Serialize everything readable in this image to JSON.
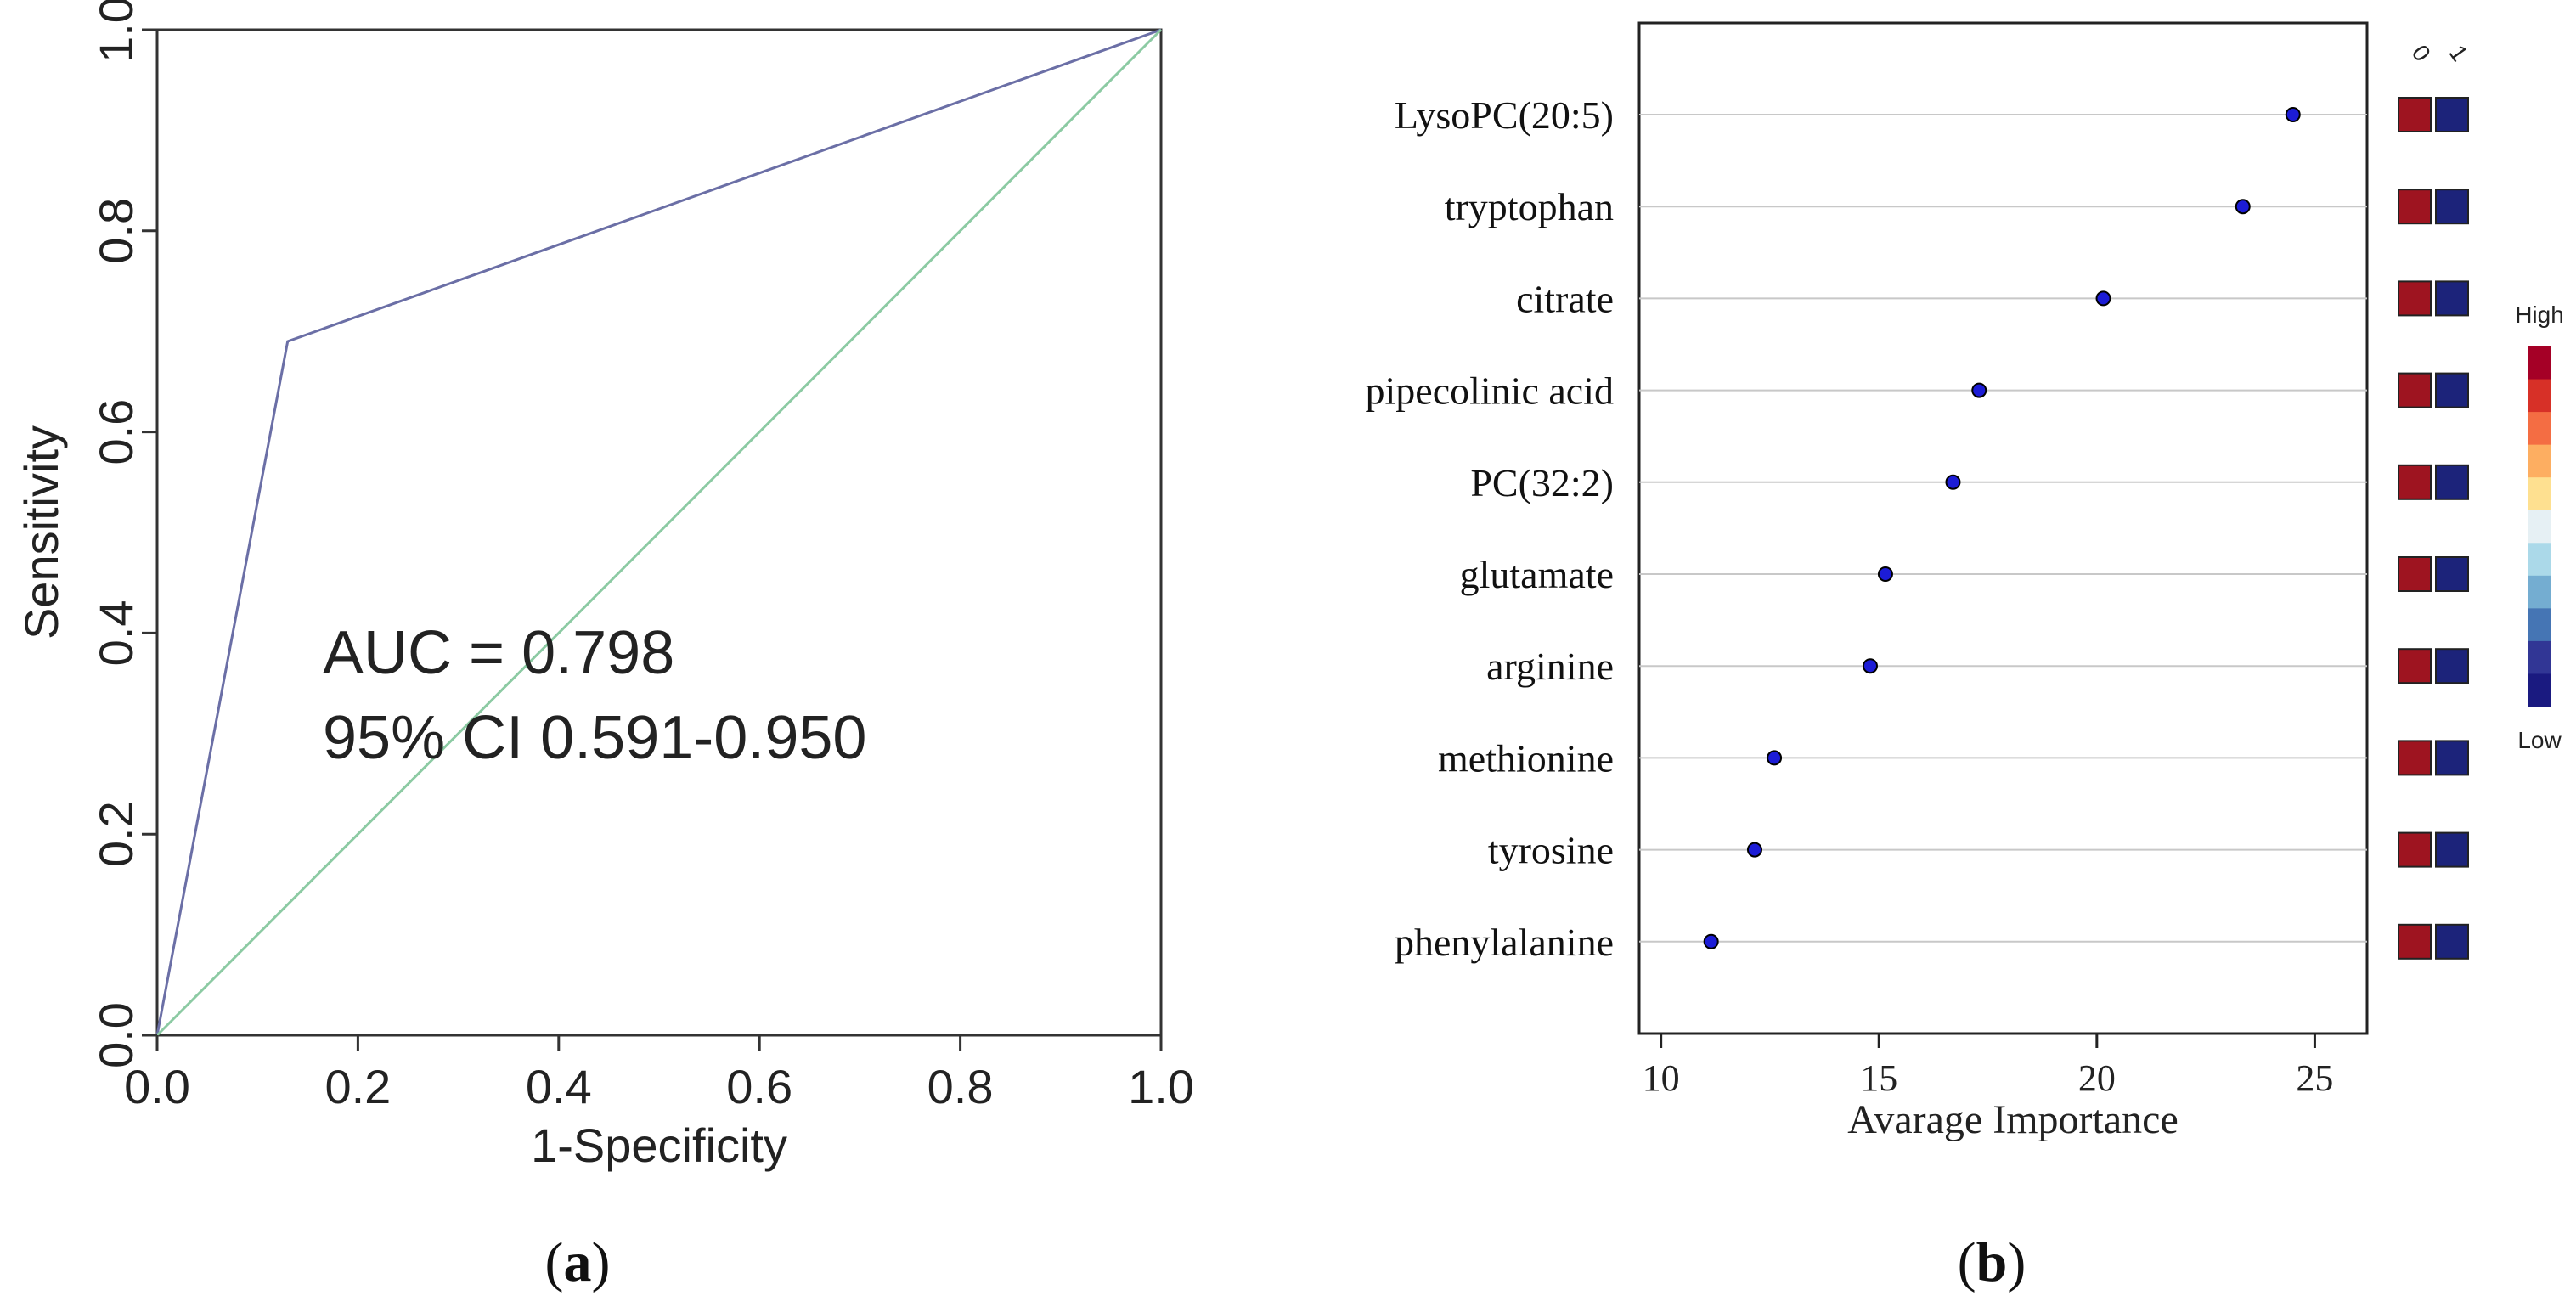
{
  "colors": {
    "roc_curve": "#6b6fa6",
    "diagonal": "#8ccaa3",
    "axis": "#333333",
    "grid": "#c8c8c8",
    "point_fill": "#1c1cd6",
    "cell_class0": "#9e1420",
    "cell_class1": "#1c237a",
    "heat_stops": [
      "#a50026",
      "#d73027",
      "#f46d43",
      "#fdae61",
      "#fee090",
      "#e6f0f4",
      "#abd9e9",
      "#74add1",
      "#4575b4",
      "#313695",
      "#1a1a80"
    ]
  },
  "chart_data": [
    {
      "type": "line",
      "panel_label": "a",
      "xlabel": "1-Specificity",
      "ylabel": "Sensitivity",
      "xlim": [
        0.0,
        1.0
      ],
      "ylim": [
        0.0,
        1.0
      ],
      "xticks": [
        "0.0",
        "0.2",
        "0.4",
        "0.6",
        "0.8",
        "1.0"
      ],
      "yticks": [
        "0.0",
        "0.2",
        "0.4",
        "0.6",
        "0.8",
        "1.0"
      ],
      "series": [
        {
          "name": "ROC",
          "x": [
            0.0,
            0.13,
            1.0
          ],
          "y": [
            0.0,
            0.69,
            1.0
          ]
        },
        {
          "name": "reference",
          "x": [
            0.0,
            1.0
          ],
          "y": [
            0.0,
            1.0
          ]
        }
      ],
      "annotations": [
        "AUC = 0.798",
        "95% CI 0.591-0.950"
      ]
    },
    {
      "type": "scatter",
      "panel_label": "b",
      "xlabel": "Avarage Importance",
      "xlim": [
        9.5,
        26.2
      ],
      "xticks": [
        "10",
        "15",
        "20",
        "25"
      ],
      "categories": [
        "LysoPC(20:5)",
        "tryptophan",
        "citrate",
        "pipecolinic acid",
        "PC(32:2)",
        "glutamate",
        "arginine",
        "methionine",
        "tyrosine",
        "phenylalanine"
      ],
      "values": [
        24.5,
        23.35,
        20.15,
        17.3,
        16.7,
        15.15,
        14.8,
        12.6,
        12.15,
        11.15
      ],
      "heatmap": {
        "columns": [
          "0",
          "1"
        ],
        "cells": [
          [
            "high",
            "low"
          ],
          [
            "high",
            "low"
          ],
          [
            "high",
            "low"
          ],
          [
            "high",
            "low"
          ],
          [
            "high",
            "low"
          ],
          [
            "high",
            "low"
          ],
          [
            "high",
            "low"
          ],
          [
            "high",
            "low"
          ],
          [
            "high",
            "low"
          ],
          [
            "high",
            "low"
          ]
        ],
        "legend_high": "High",
        "legend_low": "Low"
      }
    }
  ]
}
